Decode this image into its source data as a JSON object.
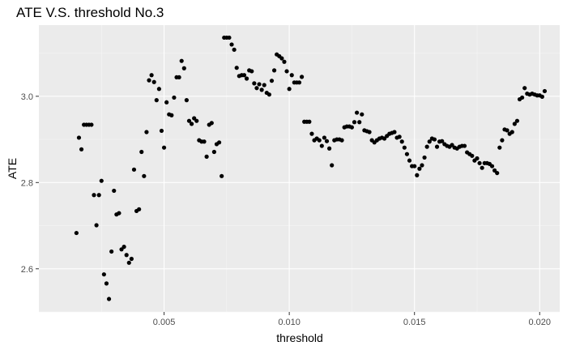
{
  "chart_data": {
    "type": "scatter",
    "title": "ATE V.S. threshold No.3",
    "xlabel": "threshold",
    "ylabel": "ATE",
    "xlim": [
      0.0,
      0.0208
    ],
    "ylim": [
      2.5,
      3.165
    ],
    "x_ticks": [
      0.005,
      0.01,
      0.015,
      0.02
    ],
    "x_tick_labels": [
      "0.005",
      "0.010",
      "0.015",
      "0.020"
    ],
    "y_ticks": [
      2.6,
      2.8,
      3.0
    ],
    "y_tick_labels": [
      "2.6",
      "2.8",
      "3.0"
    ],
    "grid": true,
    "legend": "none",
    "colors": {
      "panel": "#ebebeb",
      "grid_major": "#ffffff",
      "grid_minor": "#f5f5f5",
      "point": "#000000"
    },
    "points": [
      [
        0.0015,
        2.683
      ],
      [
        0.0016,
        2.904
      ],
      [
        0.0017,
        2.877
      ],
      [
        0.0018,
        2.934
      ],
      [
        0.0019,
        2.934
      ],
      [
        0.002,
        2.934
      ],
      [
        0.0021,
        2.934
      ],
      [
        0.0022,
        2.771
      ],
      [
        0.0023,
        2.701
      ],
      [
        0.0024,
        2.771
      ],
      [
        0.0025,
        2.804
      ],
      [
        0.0026,
        2.587
      ],
      [
        0.0027,
        2.566
      ],
      [
        0.0028,
        2.53
      ],
      [
        0.0029,
        2.64
      ],
      [
        0.003,
        2.781
      ],
      [
        0.0031,
        2.726
      ],
      [
        0.0032,
        2.729
      ],
      [
        0.0033,
        2.645
      ],
      [
        0.0034,
        2.651
      ],
      [
        0.0035,
        2.632
      ],
      [
        0.0036,
        2.614
      ],
      [
        0.0037,
        2.623
      ],
      [
        0.0038,
        2.83
      ],
      [
        0.0039,
        2.734
      ],
      [
        0.004,
        2.738
      ],
      [
        0.0041,
        2.871
      ],
      [
        0.0042,
        2.815
      ],
      [
        0.0043,
        2.917
      ],
      [
        0.0044,
        3.037
      ],
      [
        0.0045,
        3.049
      ],
      [
        0.0046,
        3.033
      ],
      [
        0.0047,
        2.991
      ],
      [
        0.0048,
        3.017
      ],
      [
        0.0049,
        2.92
      ],
      [
        0.005,
        2.881
      ],
      [
        0.0051,
        2.986
      ],
      [
        0.0052,
        2.958
      ],
      [
        0.0053,
        2.956
      ],
      [
        0.0054,
        2.997
      ],
      [
        0.0055,
        3.044
      ],
      [
        0.0056,
        3.044
      ],
      [
        0.0057,
        3.082
      ],
      [
        0.0058,
        3.065
      ],
      [
        0.0059,
        2.991
      ],
      [
        0.006,
        2.943
      ],
      [
        0.0061,
        2.936
      ],
      [
        0.0062,
        2.949
      ],
      [
        0.0063,
        2.943
      ],
      [
        0.0064,
        2.898
      ],
      [
        0.0065,
        2.895
      ],
      [
        0.0066,
        2.895
      ],
      [
        0.0067,
        2.86
      ],
      [
        0.0068,
        2.934
      ],
      [
        0.0069,
        2.938
      ],
      [
        0.007,
        2.871
      ],
      [
        0.0071,
        2.889
      ],
      [
        0.0072,
        2.893
      ],
      [
        0.0073,
        2.815
      ],
      [
        0.0074,
        3.136
      ],
      [
        0.0075,
        3.136
      ],
      [
        0.0076,
        3.136
      ],
      [
        0.0077,
        3.12
      ],
      [
        0.0078,
        3.108
      ],
      [
        0.0079,
        3.066
      ],
      [
        0.008,
        3.047
      ],
      [
        0.0081,
        3.049
      ],
      [
        0.0082,
        3.049
      ],
      [
        0.0083,
        3.041
      ],
      [
        0.0084,
        3.06
      ],
      [
        0.0085,
        3.058
      ],
      [
        0.0086,
        3.03
      ],
      [
        0.0087,
        3.019
      ],
      [
        0.0088,
        3.028
      ],
      [
        0.0089,
        3.015
      ],
      [
        0.009,
        3.026
      ],
      [
        0.0091,
        3.008
      ],
      [
        0.0092,
        3.004
      ],
      [
        0.0093,
        3.036
      ],
      [
        0.0094,
        3.06
      ],
      [
        0.0095,
        3.097
      ],
      [
        0.0096,
        3.093
      ],
      [
        0.0097,
        3.088
      ],
      [
        0.0098,
        3.08
      ],
      [
        0.0099,
        3.058
      ],
      [
        0.01,
        3.017
      ],
      [
        0.0101,
        3.049
      ],
      [
        0.0102,
        3.032
      ],
      [
        0.0103,
        3.032
      ],
      [
        0.0104,
        3.032
      ],
      [
        0.0105,
        3.045
      ],
      [
        0.0106,
        2.941
      ],
      [
        0.0107,
        2.941
      ],
      [
        0.0108,
        2.941
      ],
      [
        0.0109,
        2.913
      ],
      [
        0.011,
        2.898
      ],
      [
        0.0111,
        2.902
      ],
      [
        0.0112,
        2.898
      ],
      [
        0.0113,
        2.885
      ],
      [
        0.0114,
        2.904
      ],
      [
        0.0115,
        2.896
      ],
      [
        0.0116,
        2.879
      ],
      [
        0.0117,
        2.84
      ],
      [
        0.0118,
        2.898
      ],
      [
        0.0119,
        2.9
      ],
      [
        0.012,
        2.9
      ],
      [
        0.0121,
        2.898
      ],
      [
        0.0122,
        2.928
      ],
      [
        0.0123,
        2.93
      ],
      [
        0.0124,
        2.93
      ],
      [
        0.0125,
        2.928
      ],
      [
        0.0126,
        2.94
      ],
      [
        0.0127,
        2.962
      ],
      [
        0.0128,
        2.94
      ],
      [
        0.0129,
        2.958
      ],
      [
        0.013,
        2.921
      ],
      [
        0.0131,
        2.919
      ],
      [
        0.0132,
        2.917
      ],
      [
        0.0133,
        2.898
      ],
      [
        0.0134,
        2.893
      ],
      [
        0.0135,
        2.898
      ],
      [
        0.0136,
        2.902
      ],
      [
        0.0137,
        2.904
      ],
      [
        0.0138,
        2.902
      ],
      [
        0.0139,
        2.908
      ],
      [
        0.014,
        2.913
      ],
      [
        0.0141,
        2.915
      ],
      [
        0.0142,
        2.917
      ],
      [
        0.0143,
        2.904
      ],
      [
        0.0144,
        2.906
      ],
      [
        0.0145,
        2.895
      ],
      [
        0.0146,
        2.881
      ],
      [
        0.0147,
        2.866
      ],
      [
        0.0148,
        2.851
      ],
      [
        0.0149,
        2.838
      ],
      [
        0.015,
        2.838
      ],
      [
        0.0151,
        2.817
      ],
      [
        0.0152,
        2.832
      ],
      [
        0.0153,
        2.84
      ],
      [
        0.0154,
        2.858
      ],
      [
        0.0155,
        2.883
      ],
      [
        0.0156,
        2.895
      ],
      [
        0.0157,
        2.902
      ],
      [
        0.0158,
        2.9
      ],
      [
        0.0159,
        2.883
      ],
      [
        0.016,
        2.895
      ],
      [
        0.0161,
        2.896
      ],
      [
        0.0162,
        2.889
      ],
      [
        0.0163,
        2.885
      ],
      [
        0.0164,
        2.883
      ],
      [
        0.0165,
        2.887
      ],
      [
        0.0166,
        2.881
      ],
      [
        0.0167,
        2.879
      ],
      [
        0.0168,
        2.883
      ],
      [
        0.0169,
        2.885
      ],
      [
        0.017,
        2.885
      ],
      [
        0.0171,
        2.87
      ],
      [
        0.0172,
        2.866
      ],
      [
        0.0173,
        2.862
      ],
      [
        0.0174,
        2.851
      ],
      [
        0.0175,
        2.856
      ],
      [
        0.0176,
        2.845
      ],
      [
        0.0177,
        2.834
      ],
      [
        0.0178,
        2.845
      ],
      [
        0.0179,
        2.845
      ],
      [
        0.018,
        2.843
      ],
      [
        0.0181,
        2.838
      ],
      [
        0.0182,
        2.828
      ],
      [
        0.0183,
        2.822
      ],
      [
        0.0184,
        2.881
      ],
      [
        0.0185,
        2.898
      ],
      [
        0.0186,
        2.923
      ],
      [
        0.0187,
        2.921
      ],
      [
        0.0188,
        2.913
      ],
      [
        0.0189,
        2.917
      ],
      [
        0.019,
        2.936
      ],
      [
        0.0191,
        2.943
      ],
      [
        0.0192,
        2.993
      ],
      [
        0.0193,
        2.997
      ],
      [
        0.0194,
        3.019
      ],
      [
        0.0195,
        3.006
      ],
      [
        0.0196,
        3.004
      ],
      [
        0.0197,
        3.006
      ],
      [
        0.0198,
        3.004
      ],
      [
        0.0199,
        3.002
      ],
      [
        0.02,
        3.002
      ],
      [
        0.0201,
        2.999
      ],
      [
        0.0202,
        3.012
      ]
    ]
  }
}
